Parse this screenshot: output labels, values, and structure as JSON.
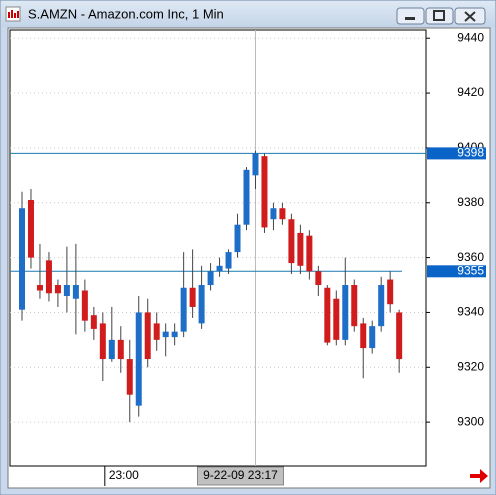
{
  "window_title": "S.AMZN - Amazon.com Inc, 1 Min",
  "chart_data": {
    "type": "candlestick",
    "categories": [
      null,
      null,
      null,
      null,
      null,
      null,
      null,
      null,
      null,
      "23:00",
      null,
      null,
      null,
      null,
      null,
      null,
      null,
      null,
      null,
      null,
      null,
      null,
      null,
      null,
      null,
      null,
      "9-22-09 23:17",
      null,
      null,
      null,
      null,
      null,
      null,
      null,
      null,
      null,
      null,
      null,
      null,
      null,
      null,
      null,
      null
    ],
    "cursor_index": 26,
    "series": [
      {
        "name": "open",
        "values": [
          9341,
          9381,
          9350,
          9359,
          9350,
          9346,
          9345,
          9348,
          9339,
          9336,
          9323,
          9330,
          9323,
          9306,
          9340,
          9336,
          9331,
          9331,
          9333,
          9349,
          9336,
          9350,
          9355,
          9356,
          9362,
          9372,
          9390,
          9397,
          9374,
          9378,
          9374,
          9369,
          9368,
          9355,
          9349,
          9345,
          9330,
          9350,
          9336,
          9327,
          9335,
          9352,
          9340
        ]
      },
      {
        "name": "high",
        "values": [
          9384,
          9385,
          9365,
          9362,
          9352,
          9364,
          9365,
          9352,
          9342,
          9340,
          9342,
          9335,
          9330,
          9346,
          9345,
          9340,
          9336,
          9336,
          9362,
          9363,
          9357,
          9358,
          9360,
          9363,
          9376,
          9393,
          9399,
          9398,
          9380,
          9380,
          9376,
          9372,
          9370,
          9357,
          9350,
          9348,
          9360,
          9352,
          9338,
          9337,
          9353,
          9355,
          9341
        ]
      },
      {
        "name": "low",
        "values": [
          9337,
          9356,
          9345,
          9344,
          9342,
          9340,
          9332,
          9333,
          9330,
          9315,
          9322,
          9318,
          9300,
          9302,
          9320,
          9326,
          9324,
          9328,
          9331,
          9338,
          9334,
          9348,
          9353,
          9354,
          9360,
          9370,
          9385,
          9369,
          9370,
          9372,
          9354,
          9354,
          9352,
          9346,
          9328,
          9328,
          9328,
          9333,
          9316,
          9325,
          9333,
          9340,
          9318
        ]
      },
      {
        "name": "close",
        "values": [
          9378,
          9360,
          9348,
          9347,
          9347,
          9350,
          9350,
          9337,
          9334,
          9323,
          9330,
          9323,
          9310,
          9340,
          9323,
          9330,
          9333,
          9333,
          9349,
          9342,
          9350,
          9355,
          9357,
          9362,
          9372,
          9392,
          9398,
          9371,
          9378,
          9374,
          9358,
          9357,
          9355,
          9350,
          9329,
          9330,
          9350,
          9335,
          9327,
          9335,
          9350,
          9343,
          9323
        ]
      }
    ],
    "up_color": "#1e6ec8",
    "down_color": "#d01c1c",
    "hlines": [
      9398,
      9355
    ],
    "hline_color": "#1a7ab0",
    "ylim": [
      9284,
      9443
    ],
    "yticks": [
      9300,
      9320,
      9340,
      9360,
      9380,
      9400,
      9420,
      9440
    ],
    "grid": true
  }
}
